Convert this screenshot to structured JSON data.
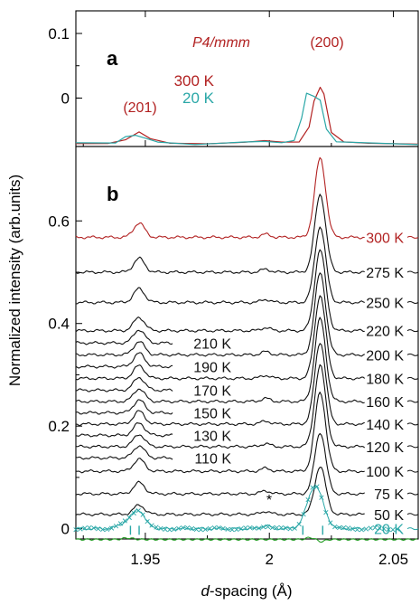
{
  "chart_data": [
    {
      "panel": "a",
      "type": "line",
      "title": "P4/mmm",
      "ylabel": "",
      "xlabel": "",
      "xlim": [
        1.922,
        2.06
      ],
      "ylim": [
        -0.075,
        0.135
      ],
      "y_ticks": [
        0,
        0.1
      ],
      "y_tick_labels": [
        "0",
        "0.1"
      ],
      "annotations": [
        {
          "text": "(201)",
          "x": 1.9475,
          "y": -0.005
        },
        {
          "text": "(200)",
          "x": 2.019,
          "y": 0.107
        }
      ],
      "series": [
        {
          "name": "300 K",
          "color": "#b22222",
          "x": [
            1.922,
            1.935,
            1.942,
            1.9475,
            1.952,
            1.96,
            1.975,
            1.99,
            1.998,
            2.005,
            2.012,
            2.016,
            2.018,
            2.0205,
            2.022,
            2.025,
            2.03,
            2.04,
            2.06
          ],
          "y": [
            -0.0705,
            -0.0695,
            -0.066,
            -0.051,
            -0.064,
            -0.0695,
            -0.0705,
            -0.0695,
            -0.0645,
            -0.0695,
            -0.067,
            -0.045,
            -0.005,
            0.018,
            0.005,
            -0.052,
            -0.0685,
            -0.07,
            -0.0705
          ]
        },
        {
          "name": "20 K",
          "color": "#2aa7a7",
          "x": [
            1.922,
            1.938,
            1.942,
            1.946,
            1.95,
            1.955,
            1.97,
            1.99,
            1.998,
            2.005,
            2.01,
            2.013,
            2.015,
            2.018,
            2.0205,
            2.023,
            2.027,
            2.035,
            2.06
          ],
          "y": [
            -0.0705,
            -0.068,
            -0.061,
            -0.057,
            -0.062,
            -0.069,
            -0.0705,
            -0.0695,
            -0.066,
            -0.0695,
            -0.066,
            -0.03,
            0.006,
            0.004,
            -0.004,
            -0.048,
            -0.067,
            -0.07,
            -0.0705
          ]
        }
      ]
    },
    {
      "panel": "b",
      "type": "line",
      "xlabel": "d-spacing (Å)",
      "ylabel": "Normalized intensity (arb.units)",
      "xlim": [
        1.922,
        2.06
      ],
      "ylim": [
        -0.02,
        0.745
      ],
      "x_ticks": [
        1.95,
        2.0,
        2.05
      ],
      "x_tick_labels": [
        "1.95",
        "2",
        "2.05"
      ],
      "y_ticks": [
        0,
        0.2,
        0.4,
        0.6
      ],
      "y_tick_labels": [
        "0",
        "0.2",
        "0.4",
        "0.6"
      ],
      "asterisk": {
        "text": "*",
        "x": 1.9995,
        "y": 0.054
      },
      "series": [
        {
          "name": "300 K",
          "color": "#b22222",
          "base": 0.568,
          "peak200": 0.154,
          "peak201": 0.028,
          "x_start": 1.922
        },
        {
          "name": "275 K",
          "color": "#111111",
          "base": 0.5,
          "peak200": 0.152,
          "peak201": 0.027,
          "x_start": 1.922
        },
        {
          "name": "250 K",
          "color": "#111111",
          "base": 0.441,
          "peak200": 0.148,
          "peak201": 0.027,
          "x_start": 1.922
        },
        {
          "name": "220 K",
          "color": "#111111",
          "base": 0.386,
          "peak200": 0.158,
          "peak201": 0.026,
          "x_start": 1.922
        },
        {
          "name": "210 K",
          "color": "#111111",
          "base": 0.362,
          "peak200": 0.158,
          "peak201": 0.026,
          "x_start": 1.922
        },
        {
          "name": "200 K",
          "color": "#111111",
          "base": 0.339,
          "peak200": 0.16,
          "peak201": 0.026,
          "x_start": 1.922
        },
        {
          "name": "190 K",
          "color": "#111111",
          "base": 0.316,
          "peak200": 0.16,
          "peak201": 0.026,
          "x_start": 1.922
        },
        {
          "name": "180 K",
          "color": "#111111",
          "base": 0.293,
          "peak200": 0.162,
          "peak201": 0.025,
          "x_start": 1.922
        },
        {
          "name": "170 K",
          "color": "#111111",
          "base": 0.27,
          "peak200": 0.162,
          "peak201": 0.025,
          "x_start": 1.922
        },
        {
          "name": "160 K",
          "color": "#111111",
          "base": 0.248,
          "peak200": 0.162,
          "peak201": 0.025,
          "x_start": 1.922
        },
        {
          "name": "150 K",
          "color": "#111111",
          "base": 0.226,
          "peak200": 0.162,
          "peak201": 0.025,
          "x_start": 1.922
        },
        {
          "name": "140 K",
          "color": "#111111",
          "base": 0.204,
          "peak200": 0.16,
          "peak201": 0.025,
          "x_start": 1.922
        },
        {
          "name": "130 K",
          "color": "#111111",
          "base": 0.182,
          "peak200": 0.158,
          "peak201": 0.024,
          "x_start": 1.922
        },
        {
          "name": "120 K",
          "color": "#111111",
          "base": 0.16,
          "peak200": 0.158,
          "peak201": 0.024,
          "x_start": 1.922
        },
        {
          "name": "110 K",
          "color": "#111111",
          "base": 0.138,
          "peak200": 0.156,
          "peak201": 0.024,
          "x_start": 1.922
        },
        {
          "name": "100 K",
          "color": "#111111",
          "base": 0.112,
          "peak200": 0.154,
          "peak201": 0.024,
          "x_start": 1.922
        },
        {
          "name": "75 K",
          "color": "#111111",
          "base": 0.068,
          "peak200": 0.12,
          "peak201": 0.022,
          "x_start": 1.922
        },
        {
          "name": "50 K",
          "color": "#111111",
          "base": 0.028,
          "peak200": 0.094,
          "peak201": 0.018,
          "x_start": 1.922
        },
        {
          "name": "20 K",
          "color": "#2aa7a7",
          "base": 0.0,
          "peak200": 0.083,
          "peak201": 0.022,
          "x_start": 1.922
        }
      ],
      "tick_marks": {
        "color": "#2aa7a7",
        "x": [
          1.944,
          1.9475,
          2.0135,
          2.0215
        ],
        "y": -0.003
      },
      "difference_curve": {
        "color": "#2ca02c",
        "y": -0.021
      }
    }
  ]
}
